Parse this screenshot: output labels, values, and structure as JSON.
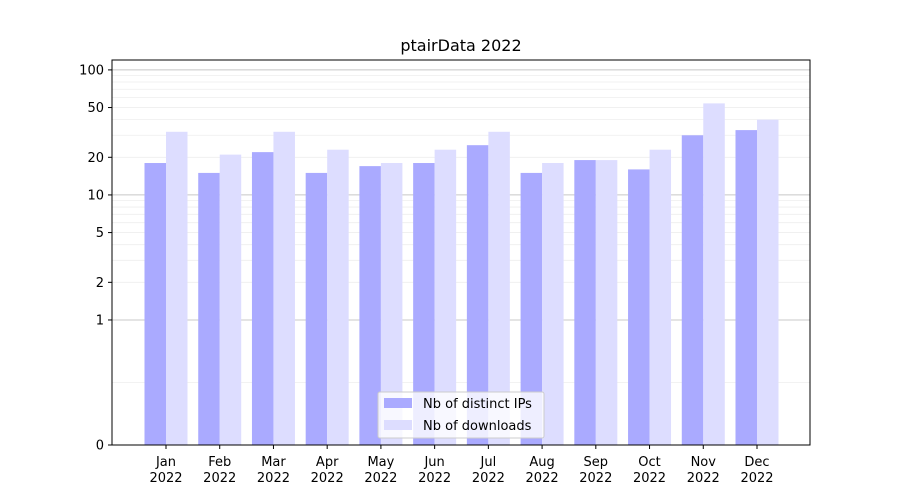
{
  "chart_data": {
    "type": "bar",
    "title": "ptairData 2022",
    "xlabel": "",
    "ylabel": "",
    "yscale": "symlog",
    "ylim": [
      0,
      120
    ],
    "y_ticks": [
      0,
      1,
      2,
      5,
      10,
      20,
      50,
      100
    ],
    "categories": [
      {
        "month": "Jan",
        "year": "2022"
      },
      {
        "month": "Feb",
        "year": "2022"
      },
      {
        "month": "Mar",
        "year": "2022"
      },
      {
        "month": "Apr",
        "year": "2022"
      },
      {
        "month": "May",
        "year": "2022"
      },
      {
        "month": "Jun",
        "year": "2022"
      },
      {
        "month": "Jul",
        "year": "2022"
      },
      {
        "month": "Aug",
        "year": "2022"
      },
      {
        "month": "Sep",
        "year": "2022"
      },
      {
        "month": "Oct",
        "year": "2022"
      },
      {
        "month": "Nov",
        "year": "2022"
      },
      {
        "month": "Dec",
        "year": "2022"
      }
    ],
    "series": [
      {
        "name": "Nb of distinct IPs",
        "color": "#aaaaff",
        "values": [
          18,
          15,
          22,
          15,
          17,
          18,
          25,
          15,
          19,
          16,
          30,
          33
        ]
      },
      {
        "name": "Nb of downloads",
        "color": "#ddddff",
        "values": [
          32,
          21,
          32,
          23,
          18,
          23,
          32,
          18,
          19,
          23,
          54,
          40
        ]
      }
    ],
    "grid": true,
    "legend": "lower-center"
  }
}
